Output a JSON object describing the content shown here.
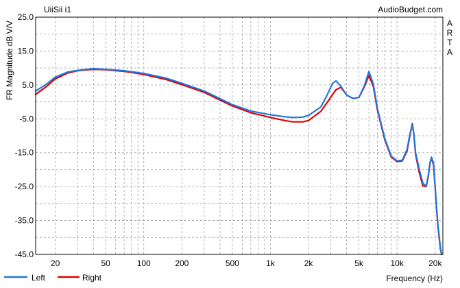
{
  "chart_data": {
    "type": "line",
    "title": "UiiSii i1",
    "source_label": "AudioBudget.com",
    "side_label": [
      "A",
      "R",
      "T",
      "A"
    ],
    "xlabel": "Frequency (Hz)",
    "ylabel": "FR Magnitude dB V/V",
    "x_scale": "log",
    "xlim": [
      14,
      23000
    ],
    "ylim": [
      -45,
      25
    ],
    "grid": true,
    "y_ticks": [
      25.0,
      15.0,
      5.0,
      -5.0,
      -15.0,
      -25.0,
      -35.0,
      -45.0
    ],
    "y_tick_labels": [
      "25.0",
      "15.0",
      "5.0",
      "-5.0",
      "-15.0",
      "-25.0",
      "-35.0",
      "-45.0"
    ],
    "x_ticks": [
      20,
      50,
      100,
      200,
      500,
      1000,
      2000,
      5000,
      10000,
      20000
    ],
    "x_tick_labels": [
      "20",
      "50",
      "100",
      "200",
      "500",
      "1k",
      "2k",
      "5k",
      "10k",
      "20k"
    ],
    "legend_position": "bottom-left",
    "series": [
      {
        "name": "Left",
        "color": "#1f77e0",
        "x": [
          14,
          17,
          20,
          25,
          30,
          40,
          50,
          70,
          100,
          150,
          200,
          300,
          500,
          700,
          1000,
          1300,
          1500,
          1800,
          2000,
          2500,
          2800,
          3100,
          3300,
          3600,
          4000,
          4500,
          5000,
          5500,
          6000,
          6500,
          7000,
          8000,
          9000,
          10000,
          11000,
          12000,
          12700,
          13200,
          13600,
          14000,
          15000,
          16000,
          17000,
          17600,
          18200,
          18700,
          19400,
          20000,
          20500,
          21000,
          22000,
          22500
        ],
        "y": [
          3.2,
          5.2,
          7.3,
          8.8,
          9.3,
          9.8,
          9.6,
          9.2,
          8.4,
          7.0,
          5.5,
          3.2,
          -0.8,
          -2.7,
          -3.8,
          -4.4,
          -4.6,
          -4.5,
          -4.0,
          -1.5,
          2.0,
          5.5,
          6.2,
          4.6,
          2.0,
          1.0,
          1.3,
          4.6,
          9.0,
          5.2,
          -2.0,
          -10.8,
          -16.0,
          -17.4,
          -17.2,
          -14.0,
          -9.0,
          -6.8,
          -9.5,
          -15.0,
          -20.0,
          -24.0,
          -24.8,
          -22.0,
          -18.0,
          -16.3,
          -18.0,
          -25.0,
          -31.0,
          -36.0,
          -43.0,
          -45.0
        ]
      },
      {
        "name": "Right",
        "color": "#e00000",
        "x": [
          14,
          17,
          20,
          25,
          30,
          40,
          50,
          70,
          100,
          150,
          200,
          300,
          500,
          700,
          1000,
          1300,
          1500,
          1800,
          2000,
          2500,
          2800,
          3100,
          3300,
          3600,
          4000,
          4500,
          5000,
          5500,
          6000,
          6500,
          7000,
          8000,
          9000,
          10000,
          11000,
          12000,
          12700,
          13200,
          13600,
          14000,
          15000,
          16000,
          17000,
          17600,
          18200,
          18700,
          19400,
          20000,
          20500,
          21000,
          22000,
          22500
        ],
        "y": [
          2.2,
          4.5,
          6.8,
          8.5,
          9.2,
          9.6,
          9.5,
          9.0,
          8.1,
          6.6,
          5.1,
          2.8,
          -1.2,
          -3.2,
          -4.6,
          -5.5,
          -5.9,
          -5.9,
          -5.5,
          -2.8,
          -0.2,
          2.2,
          3.6,
          4.3,
          2.0,
          1.0,
          1.3,
          4.3,
          7.8,
          4.5,
          -2.5,
          -11.2,
          -16.3,
          -17.6,
          -17.4,
          -14.5,
          -9.4,
          -6.4,
          -9.8,
          -15.5,
          -21.0,
          -24.8,
          -25.0,
          -22.3,
          -18.2,
          -16.6,
          -18.5,
          -25.5,
          -31.5,
          -36.5,
          -43.5,
          -45.0
        ]
      }
    ]
  }
}
